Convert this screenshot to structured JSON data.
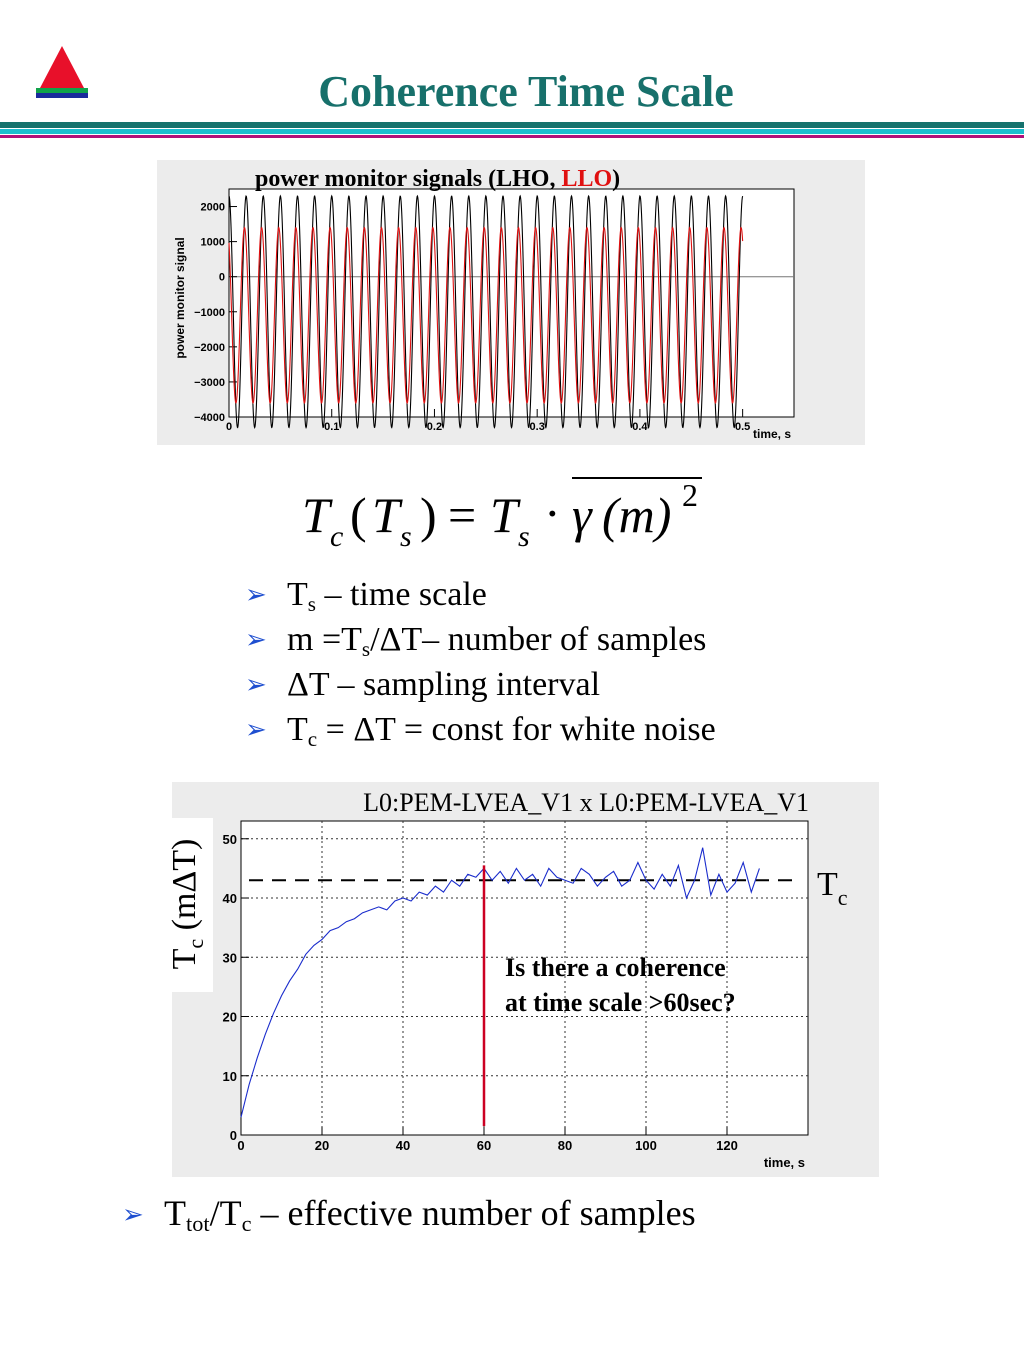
{
  "slide": {
    "title": "Coherence Time Scale",
    "colors": {
      "title": "#17706b",
      "rule_teal": "#15726d",
      "rule_cyan": "#1bbfcf",
      "rule_magenta": "#b0107a",
      "bullet": "#1f4fd0"
    }
  },
  "logo": {
    "icon": "red-triangle-on-green-blue-bars-icon"
  },
  "formula": {
    "lhs_T": "T",
    "lhs_c": "c",
    "lhs_open": "(",
    "lhs_Ts_T": "T",
    "lhs_Ts_s": "s",
    "lhs_close": ")",
    "equals": "=",
    "rhs_T": "T",
    "rhs_s": "s",
    "dot": "·",
    "gamma": "γ",
    "m_group": "(m)",
    "power": "2"
  },
  "bullets": [
    {
      "pre": "T",
      "sub": "s",
      "post": " – time scale"
    },
    {
      "pre": "m =T",
      "sub": "s",
      "post": "/ΔT– number of samples"
    },
    {
      "pre": "ΔT – sampling interval",
      "sub": "",
      "post": ""
    },
    {
      "pre": "T",
      "sub": "c",
      "post": " = ΔT = const for white noise"
    }
  ],
  "last_bullet": {
    "pre": "T",
    "sub1": "tot",
    "mid": "/T",
    "sub2": "c",
    "post": " – effective number of samples"
  },
  "chart_data": [
    {
      "type": "line",
      "title_prefix": "power monitor signals (",
      "title_lho": "LHO",
      "title_sep": ", ",
      "title_llo": "LLO",
      "title_suffix": ")",
      "ylabel": "power monitor signal",
      "xlabel": "time, s",
      "xlim": [
        0,
        0.55
      ],
      "ylim": [
        -4000,
        2500
      ],
      "x_ticks": [
        "0",
        "0.1",
        "0.2",
        "0.3",
        "0.4",
        "0.5"
      ],
      "y_ticks": [
        "2000",
        "1000",
        "0",
        "−1000",
        "−2000",
        "−3000",
        "−4000"
      ],
      "grid": false,
      "series": [
        {
          "name": "LHO",
          "color": "#000000",
          "x_start": 0,
          "x_end": 0.5,
          "period": 0.01667,
          "center": -1000,
          "amplitude": 3300,
          "phase": 0
        },
        {
          "name": "LLO",
          "color": "#e01010",
          "x_start": 0,
          "x_end": 0.5,
          "period": 0.01667,
          "center": -1100,
          "amplitude": 2500,
          "phase": 0.6
        }
      ]
    },
    {
      "type": "line",
      "title": "L0:PEM-LVEA_V1 x L0:PEM-LVEA_V1",
      "xlabel": "time, s",
      "ylabel_pre": "T",
      "ylabel_sub": "c",
      "ylabel_post": " (mΔT)",
      "xlim": [
        0,
        140
      ],
      "ylim": [
        0,
        53
      ],
      "x_ticks": [
        "0",
        "20",
        "40",
        "60",
        "80",
        "100",
        "120"
      ],
      "y_ticks": [
        "0",
        "10",
        "20",
        "30",
        "40",
        "50"
      ],
      "grid": true,
      "tc_level": 43,
      "tc_label": "T",
      "tc_label_sub": "c",
      "marker_x": 60,
      "marker_color": "#cc0022",
      "annotation_line1": "Is there a coherence",
      "annotation_line2": "at time scale >60sec?",
      "series_color": "#1a2ccc",
      "x": [
        0,
        2,
        4,
        6,
        8,
        10,
        12,
        14,
        16,
        18,
        20,
        22,
        24,
        26,
        28,
        30,
        32,
        34,
        36,
        38,
        40,
        42,
        44,
        46,
        48,
        50,
        52,
        54,
        56,
        58,
        60,
        62,
        64,
        66,
        68,
        70,
        72,
        74,
        76,
        78,
        80,
        82,
        84,
        86,
        88,
        90,
        92,
        94,
        96,
        98,
        100,
        102,
        104,
        106,
        108,
        110,
        112,
        114,
        116,
        118,
        120,
        122,
        124,
        126,
        128
      ],
      "values": [
        3,
        8.5,
        13,
        17,
        20.5,
        23.5,
        26,
        28,
        30.5,
        32,
        33,
        34.5,
        35,
        36,
        36.5,
        37.5,
        38,
        38.5,
        38,
        39.5,
        40,
        39.5,
        41,
        40.5,
        42,
        41,
        43,
        42,
        44,
        43.5,
        45,
        43,
        44.5,
        42.5,
        45,
        43,
        44,
        42,
        45,
        43.5,
        43,
        42.5,
        45,
        44,
        42,
        43.5,
        44.5,
        42,
        43,
        46,
        43,
        41.5,
        44,
        42,
        45.5,
        40,
        43,
        48.5,
        40.5,
        44,
        41,
        42.5,
        46,
        41,
        45
      ]
    }
  ]
}
